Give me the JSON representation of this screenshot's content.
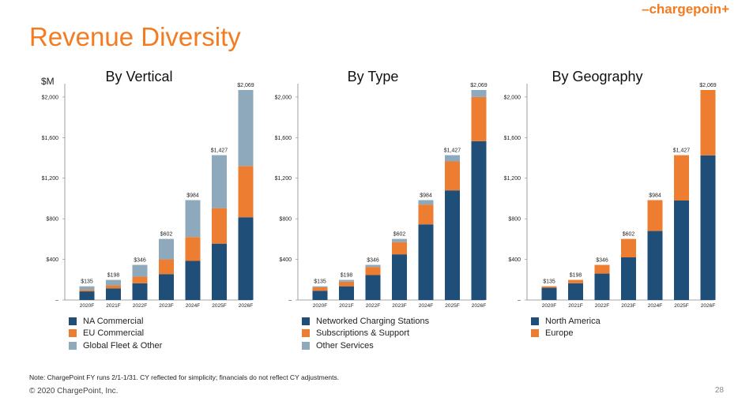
{
  "logo": "–chargepoin+",
  "title": "Revenue Diversity",
  "unit_label": "$M",
  "footer": {
    "note": "Note: ChargePoint FY runs 2/1-1/31. CY reflected for simplicity; financials do not reflect CY adjustments.",
    "copyright": "© 2020 ChargePoint, Inc.",
    "page_number": "28"
  },
  "colors": {
    "navy": "#1f4e79",
    "orange": "#ed7d31",
    "gray": "#8ea9bb"
  },
  "chart_data": [
    {
      "type": "bar",
      "stacked": true,
      "title": "By Vertical",
      "categories": [
        "2020F",
        "2021F",
        "2022F",
        "2023F",
        "2024F",
        "2025F",
        "2026F"
      ],
      "totals": [
        "$135",
        "$198",
        "$346",
        "$602",
        "$984",
        "$1,427",
        "$2,069"
      ],
      "yticks": [
        "$2,000",
        "$1,600",
        "$1,200",
        "$800",
        "$400",
        "–"
      ],
      "ylim": [
        0,
        2069
      ],
      "series": [
        {
          "name": "NA Commercial",
          "color": "#1f4e79",
          "values": [
            85,
            115,
            165,
            255,
            385,
            555,
            815
          ]
        },
        {
          "name": "EU Commercial",
          "color": "#ed7d31",
          "values": [
            15,
            30,
            65,
            145,
            235,
            350,
            505
          ]
        },
        {
          "name": "Global Fleet & Other",
          "color": "#8ea9bb",
          "values": [
            35,
            53,
            116,
            202,
            364,
            522,
            749
          ]
        }
      ]
    },
    {
      "type": "bar",
      "stacked": true,
      "title": "By Type",
      "categories": [
        "2020F",
        "2021F",
        "2022F",
        "2023F",
        "2024F",
        "2025F",
        "2026F"
      ],
      "totals": [
        "$135",
        "$198",
        "$346",
        "$602",
        "$984",
        "$1,427",
        "$2,069"
      ],
      "yticks": [
        "$2,000",
        "$1,600",
        "$1,200",
        "$800",
        "$400",
        "–"
      ],
      "ylim": [
        0,
        2069
      ],
      "series": [
        {
          "name": "Networked Charging Stations",
          "color": "#1f4e79",
          "values": [
            90,
            135,
            245,
            450,
            745,
            1080,
            1565
          ]
        },
        {
          "name": "Subscriptions & Support",
          "color": "#ed7d31",
          "values": [
            35,
            45,
            80,
            120,
            195,
            285,
            435
          ]
        },
        {
          "name": "Other Services",
          "color": "#8ea9bb",
          "values": [
            10,
            18,
            21,
            32,
            44,
            62,
            69
          ]
        }
      ]
    },
    {
      "type": "bar",
      "stacked": true,
      "title": "By Geography",
      "categories": [
        "2020F",
        "2021F",
        "2022F",
        "2023F",
        "2024F",
        "2025F",
        "2026F"
      ],
      "totals": [
        "$135",
        "$198",
        "$346",
        "$602",
        "$984",
        "$1,427",
        "$2,069"
      ],
      "yticks": [
        "$2,000",
        "$1,600",
        "$1,200",
        "$800",
        "$400",
        "–"
      ],
      "ylim": [
        0,
        2069
      ],
      "series": [
        {
          "name": "North America",
          "color": "#1f4e79",
          "values": [
            120,
            165,
            260,
            420,
            680,
            980,
            1425
          ]
        },
        {
          "name": "Europe",
          "color": "#ed7d31",
          "values": [
            15,
            33,
            86,
            182,
            304,
            447,
            644
          ]
        }
      ]
    }
  ]
}
